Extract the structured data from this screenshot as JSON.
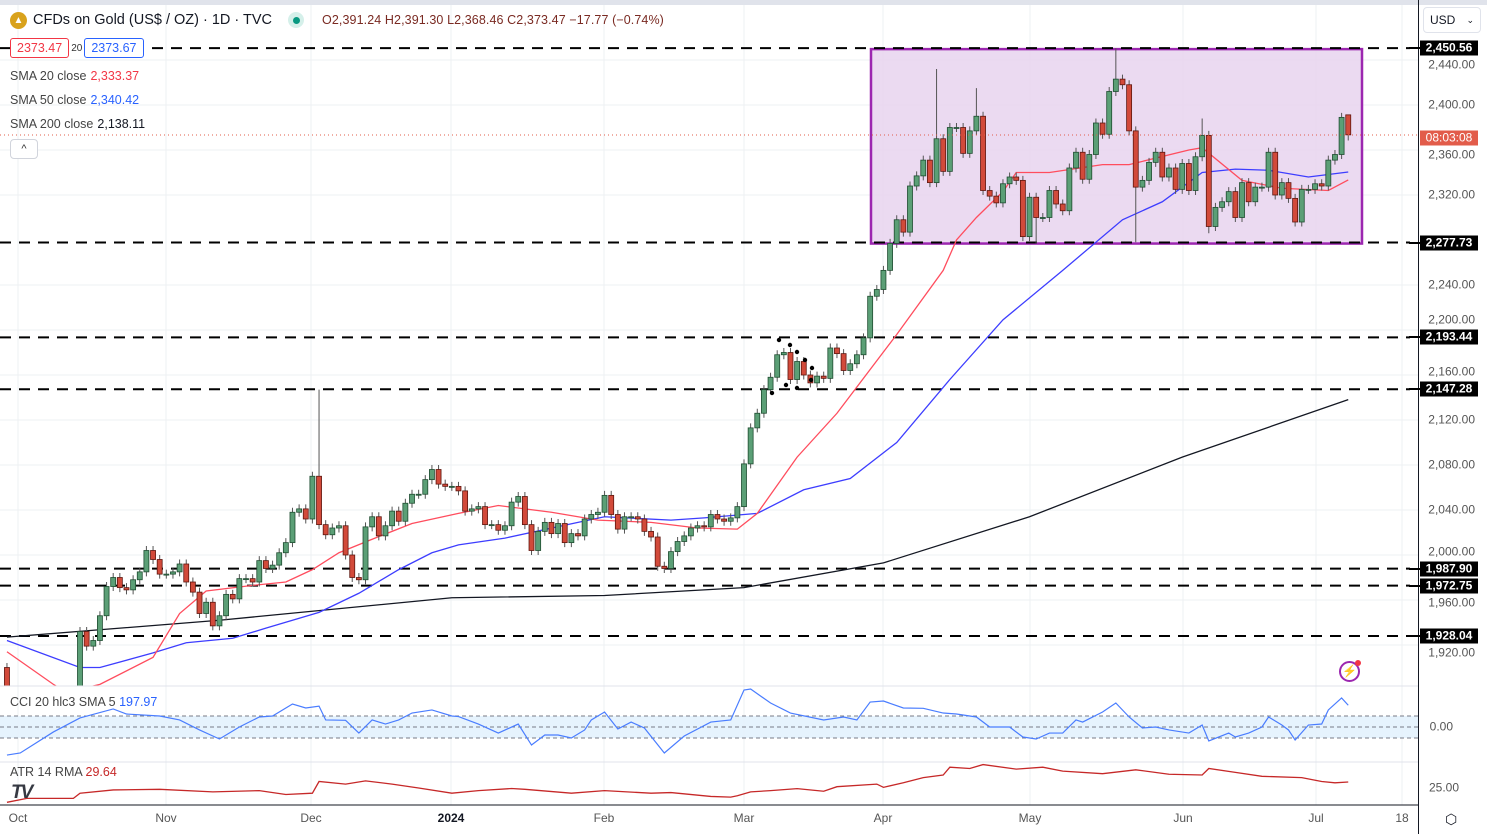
{
  "header": {
    "symbol_icon": "gold-bars-icon",
    "title": "CFDs on Gold (US$ / OZ) · 1D · TVC",
    "status": "market-open-dot",
    "open": "O2,391.24",
    "high": "H2,391.30",
    "low": "L2,368.46",
    "close": "C2,373.47",
    "change": "−17.77 (−0.74%)",
    "bid": "2373.47",
    "spread": "20",
    "ask": "2373.67"
  },
  "legend": {
    "sma20_label": "SMA 20 close",
    "sma20_value": "2,333.37",
    "sma50_label": "SMA 50 close",
    "sma50_value": "2,340.42",
    "sma200_label": "SMA 200 close",
    "sma200_value": "2,138.11",
    "collapse": "^"
  },
  "indicators": {
    "cci_label": "CCI 20 hlc3 SMA 5",
    "cci_value": "197.97",
    "atr_label": "ATR 14 RMA",
    "atr_value": "29.64"
  },
  "price_axis": {
    "currency": "USD",
    "ticks": [
      "2,440.00",
      "2,400.00",
      "2,360.00",
      "2,320.00",
      "2,240.00",
      "2,200.00",
      "2,160.00",
      "2,120.00",
      "2,080.00",
      "2,040.00",
      "2,000.00",
      "1,960.00",
      "1,920.00"
    ],
    "countdown": "08:03:08",
    "cci_tick": "0.00",
    "atr_tick": "25.00"
  },
  "time_axis": [
    "Oct",
    "Nov",
    "Dec",
    "2024",
    "Feb",
    "Mar",
    "Apr",
    "May",
    "Jun",
    "Jul",
    "18"
  ],
  "colors": {
    "up": "#5b9f76",
    "down": "#d24a3a",
    "sma20": "#ff4d5e",
    "sma50": "#3d3dff",
    "sma200": "#131722",
    "zone_fill": "#e8d3ef",
    "zone_border": "#9c27b0",
    "cci": "#4a7dff",
    "atr": "#c62828",
    "countdown": "#e25c4a"
  },
  "chart_data": {
    "type": "candlestick",
    "timeframe": "1D",
    "ylim": [
      1900,
      2460
    ],
    "first_open": 1900,
    "last_bar": {
      "open": 2391.24,
      "high": 2391.3,
      "low": 2368.46,
      "close": 2373.47
    },
    "close": [
      1848,
      1826,
      1822,
      1818,
      1820,
      1833,
      1860,
      1875,
      1874,
      1869,
      1868,
      1932,
      1919,
      1924,
      1946,
      1972,
      1980,
      1971,
      1969,
      1978,
      1985,
      2004,
      1996,
      1983,
      1983,
      1985,
      1992,
      1976,
      1967,
      1948,
      1958,
      1937,
      1946,
      1965,
      1961,
      1979,
      1979,
      1976,
      1995,
      1988,
      1991,
      2002,
      2011,
      2038,
      2041,
      2032,
      2070,
      2027,
      2018,
      2024,
      2026,
      2000,
      1980,
      1978,
      2025,
      2034,
      2017,
      2026,
      2039,
      2030,
      2046,
      2054,
      2054,
      2067,
      2076,
      2063,
      2061,
      2061,
      2057,
      2039,
      2041,
      2043,
      2027,
      2027,
      2022,
      2026,
      2047,
      2052,
      2027,
      2004,
      2021,
      2029,
      2019,
      2028,
      2011,
      2019,
      2017,
      2032,
      2036,
      2038,
      2053,
      2036,
      2023,
      2034,
      2034,
      2032,
      2021,
      2016,
      1990,
      1988,
      2003,
      2012,
      2017,
      2024,
      2026,
      2025,
      2036,
      2032,
      2030,
      2033,
      2043,
      2081,
      2113,
      2126,
      2147,
      2158,
      2178,
      2180,
      2156,
      2172,
      2160,
      2153,
      2159,
      2157,
      2184,
      2179,
      2164,
      2170,
      2178,
      2193,
      2230,
      2236,
      2253,
      2277,
      2298,
      2287,
      2328,
      2337,
      2351,
      2331,
      2370,
      2341,
      2380,
      2380,
      2357,
      2377,
      2390,
      2324,
      2319,
      2313,
      2330,
      2336,
      2333,
      2283,
      2318,
      2300,
      2300,
      2324,
      2312,
      2306,
      2344,
      2358,
      2334,
      2356,
      2384,
      2374,
      2412,
      2423,
      2418,
      2377,
      2327,
      2333,
      2349,
      2358,
      2336,
      2344,
      2325,
      2348,
      2324,
      2354,
      2373,
      2292,
      2309,
      2314,
      2323,
      2300,
      2331,
      2314,
      2327,
      2327,
      2358,
      2320,
      2331,
      2317,
      2296,
      2325,
      2325,
      2330,
      2328,
      2351,
      2356,
      2389,
      2373.47
    ],
    "notable_highs": [
      [
        47,
        2147
      ],
      [
        140,
        2432
      ],
      [
        146,
        2415
      ],
      [
        167,
        2450.56
      ],
      [
        180,
        2388
      ]
    ],
    "notable_lows": [
      [
        170,
        2278
      ],
      [
        181,
        2286
      ],
      [
        155,
        2277
      ]
    ],
    "sma20": [
      [
        0,
        1914
      ],
      [
        7,
        1885
      ],
      [
        9,
        1878
      ],
      [
        14,
        1885
      ],
      [
        22,
        1909
      ],
      [
        26,
        1948
      ],
      [
        30,
        1968
      ],
      [
        37,
        1973
      ],
      [
        42,
        1976
      ],
      [
        46,
        1987
      ],
      [
        50,
        2002
      ],
      [
        55,
        2014
      ],
      [
        61,
        2028
      ],
      [
        68,
        2037
      ],
      [
        74,
        2044
      ],
      [
        82,
        2038
      ],
      [
        89,
        2031
      ],
      [
        97,
        2029
      ],
      [
        104,
        2024
      ],
      [
        110,
        2023
      ],
      [
        113,
        2037
      ],
      [
        119,
        2087
      ],
      [
        125,
        2126
      ],
      [
        134,
        2196
      ],
      [
        141,
        2253
      ],
      [
        143,
        2280
      ],
      [
        146,
        2300
      ],
      [
        150,
        2323
      ],
      [
        152,
        2340
      ],
      [
        157,
        2340
      ],
      [
        165,
        2347
      ],
      [
        169,
        2347
      ],
      [
        178,
        2360
      ],
      [
        180,
        2362
      ],
      [
        186,
        2333
      ],
      [
        192,
        2326
      ],
      [
        199,
        2324
      ],
      [
        202,
        2333.37
      ]
    ],
    "sma50": [
      [
        0,
        1924
      ],
      [
        11,
        1900
      ],
      [
        14,
        1900
      ],
      [
        22,
        1913
      ],
      [
        27,
        1922
      ],
      [
        34,
        1926
      ],
      [
        39,
        1935
      ],
      [
        47,
        1949
      ],
      [
        53,
        1966
      ],
      [
        59,
        1987
      ],
      [
        64,
        2002
      ],
      [
        68,
        2009
      ],
      [
        75,
        2015
      ],
      [
        86,
        2029
      ],
      [
        90,
        2034
      ],
      [
        100,
        2031
      ],
      [
        105,
        2033
      ],
      [
        113,
        2037
      ],
      [
        120,
        2058
      ],
      [
        127,
        2068
      ],
      [
        134,
        2100
      ],
      [
        142,
        2156
      ],
      [
        150,
        2209
      ],
      [
        159,
        2253
      ],
      [
        168,
        2298
      ],
      [
        174,
        2314
      ],
      [
        180,
        2340
      ],
      [
        185,
        2343
      ],
      [
        190,
        2342
      ],
      [
        196,
        2336
      ],
      [
        202,
        2340.42
      ]
    ],
    "sma200": [
      [
        0,
        1927
      ],
      [
        32,
        1942
      ],
      [
        67,
        1962
      ],
      [
        90,
        1964
      ],
      [
        111,
        1971
      ],
      [
        132,
        1993
      ],
      [
        154,
        2034
      ],
      [
        177,
        2087
      ],
      [
        202,
        2138.11
      ]
    ],
    "levels": [
      2450.56,
      2277.73,
      2193.44,
      2147.28,
      1987.9,
      1972.75,
      1928.04
    ],
    "zone": {
      "from_bar": 130,
      "to_bar": 204,
      "top": 2450.56,
      "bottom": 2277.73
    },
    "cci": {
      "bands": [
        100,
        0,
        -100
      ],
      "points": [
        [
          0,
          -255
        ],
        [
          2,
          -236
        ],
        [
          7,
          -45
        ],
        [
          11,
          82
        ],
        [
          16,
          164
        ],
        [
          18,
          118
        ],
        [
          23,
          100
        ],
        [
          26,
          64
        ],
        [
          29,
          -27
        ],
        [
          32,
          -109
        ],
        [
          35,
          0
        ],
        [
          38,
          91
        ],
        [
          40,
          100
        ],
        [
          43,
          209
        ],
        [
          45,
          173
        ],
        [
          47,
          190
        ],
        [
          48,
          64
        ],
        [
          51,
          61
        ],
        [
          53,
          -55
        ],
        [
          55,
          64
        ],
        [
          57,
          27
        ],
        [
          59,
          64
        ],
        [
          61,
          127
        ],
        [
          64,
          155
        ],
        [
          67,
          100
        ],
        [
          68,
          95
        ],
        [
          71,
          27
        ],
        [
          74,
          -55
        ],
        [
          77,
          27
        ],
        [
          79,
          -164
        ],
        [
          81,
          -73
        ],
        [
          83,
          -73
        ],
        [
          85,
          -100
        ],
        [
          87,
          -27
        ],
        [
          88,
          64
        ],
        [
          90,
          136
        ],
        [
          92,
          -18
        ],
        [
          94,
          45
        ],
        [
          96,
          -9
        ],
        [
          99,
          -236
        ],
        [
          102,
          -82
        ],
        [
          106,
          45
        ],
        [
          109,
          64
        ],
        [
          111,
          336
        ],
        [
          112,
          345
        ],
        [
          115,
          218
        ],
        [
          118,
          127
        ],
        [
          123,
          64
        ],
        [
          126,
          91
        ],
        [
          128,
          64
        ],
        [
          130,
          227
        ],
        [
          132,
          236
        ],
        [
          135,
          173
        ],
        [
          138,
          170
        ],
        [
          141,
          127
        ],
        [
          143,
          118
        ],
        [
          146,
          91
        ],
        [
          148,
          0
        ],
        [
          151,
          0
        ],
        [
          153,
          -91
        ],
        [
          155,
          -109
        ],
        [
          157,
          -55
        ],
        [
          159,
          -55
        ],
        [
          161,
          64
        ],
        [
          162,
          45
        ],
        [
          165,
          136
        ],
        [
          167,
          218
        ],
        [
          169,
          91
        ],
        [
          171,
          -9
        ],
        [
          173,
          0
        ],
        [
          175,
          -27
        ],
        [
          178,
          -55
        ],
        [
          180,
          18
        ],
        [
          181,
          -127
        ],
        [
          184,
          -55
        ],
        [
          185,
          -91
        ],
        [
          187,
          -55
        ],
        [
          189,
          0
        ],
        [
          190,
          91
        ],
        [
          192,
          18
        ],
        [
          193,
          -27
        ],
        [
          194,
          -118
        ],
        [
          196,
          18
        ],
        [
          198,
          27
        ],
        [
          199,
          155
        ],
        [
          201,
          264
        ],
        [
          202,
          197.97
        ]
      ]
    },
    "atr": {
      "points": [
        [
          0,
          14
        ],
        [
          3,
          17
        ],
        [
          10,
          17
        ],
        [
          11,
          21
        ],
        [
          16,
          23.5
        ],
        [
          23,
          24
        ],
        [
          31,
          22
        ],
        [
          38,
          23
        ],
        [
          42,
          20
        ],
        [
          46,
          21
        ],
        [
          47,
          30
        ],
        [
          51,
          28
        ],
        [
          54,
          30.5
        ],
        [
          58,
          28
        ],
        [
          62,
          25
        ],
        [
          67,
          21
        ],
        [
          71,
          23
        ],
        [
          76,
          24.6
        ],
        [
          78,
          24
        ],
        [
          85,
          21
        ],
        [
          90,
          23
        ],
        [
          97,
          21
        ],
        [
          100,
          21.5
        ],
        [
          106,
          18.5
        ],
        [
          109,
          18
        ],
        [
          110,
          19
        ],
        [
          112,
          22
        ],
        [
          115,
          23
        ],
        [
          119,
          24.5
        ],
        [
          123,
          22.5
        ],
        [
          125,
          26
        ],
        [
          131,
          28
        ],
        [
          132,
          25.5
        ],
        [
          135,
          29
        ],
        [
          138,
          33
        ],
        [
          141,
          35
        ],
        [
          142,
          41
        ],
        [
          145,
          40
        ],
        [
          147,
          43
        ],
        [
          152,
          39.5
        ],
        [
          156,
          41
        ],
        [
          159,
          38
        ],
        [
          165,
          36
        ],
        [
          170,
          39
        ],
        [
          175,
          35.6
        ],
        [
          180,
          35
        ],
        [
          181,
          40
        ],
        [
          185,
          37
        ],
        [
          189,
          34
        ],
        [
          195,
          33
        ],
        [
          198,
          30
        ],
        [
          200,
          29
        ],
        [
          202,
          29.64
        ]
      ]
    }
  }
}
